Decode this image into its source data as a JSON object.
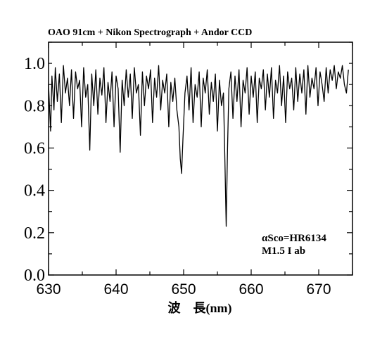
{
  "chart_data": {
    "type": "line",
    "title": "OAO 91cm + Nikon Spectrograph + Andor CCD",
    "xlabel": "波　長(nm)",
    "ylabel": "",
    "xlim": [
      630,
      675
    ],
    "ylim": [
      0.0,
      1.1
    ],
    "x_ticks": [
      630,
      640,
      650,
      660,
      670
    ],
    "x_tick_labels": [
      "630",
      "640",
      "650",
      "660",
      "670"
    ],
    "y_ticks": [
      0.0,
      0.2,
      0.4,
      0.6,
      0.8,
      1.0
    ],
    "y_tick_labels": [
      "0.0",
      "0.2",
      "0.4",
      "0.6",
      "0.8",
      "1.0"
    ],
    "grid": false,
    "annotations": [
      "αSco=HR6134",
      "M1.5 I ab"
    ],
    "series": [
      {
        "x": [
          630.0,
          630.3,
          630.5,
          630.8,
          631.0,
          631.3,
          631.6,
          631.9,
          632.2,
          632.5,
          632.8,
          633.1,
          633.4,
          633.7,
          634.0,
          634.3,
          634.6,
          634.9,
          635.2,
          635.5,
          635.8,
          636.1,
          636.4,
          636.7,
          637.0,
          637.3,
          637.6,
          637.9,
          638.2,
          638.5,
          638.8,
          639.1,
          639.4,
          639.7,
          640.0,
          640.3,
          640.6,
          640.9,
          641.2,
          641.5,
          641.8,
          642.1,
          642.4,
          642.7,
          643.0,
          643.3,
          643.6,
          643.9,
          644.2,
          644.5,
          644.8,
          645.1,
          645.4,
          645.7,
          646.0,
          646.3,
          646.6,
          646.9,
          647.2,
          647.5,
          647.8,
          648.1,
          648.4,
          648.7,
          649.0,
          649.3,
          649.5,
          649.7,
          649.9,
          650.2,
          650.5,
          650.8,
          651.1,
          651.4,
          651.7,
          652.0,
          652.3,
          652.6,
          652.9,
          653.2,
          653.5,
          653.8,
          654.1,
          654.4,
          654.7,
          655.0,
          655.3,
          655.6,
          655.9,
          656.1,
          656.3,
          656.5,
          656.7,
          657.0,
          657.3,
          657.6,
          657.9,
          658.2,
          658.5,
          658.8,
          659.1,
          659.4,
          659.7,
          660.0,
          660.3,
          660.6,
          660.9,
          661.2,
          661.5,
          661.8,
          662.1,
          662.4,
          662.7,
          663.0,
          663.3,
          663.6,
          663.9,
          664.2,
          664.5,
          664.8,
          665.1,
          665.4,
          665.7,
          666.0,
          666.3,
          666.6,
          666.9,
          667.2,
          667.5,
          667.8,
          668.1,
          668.4,
          668.7,
          669.0,
          669.3,
          669.6,
          669.9,
          670.2,
          670.5,
          670.8,
          671.1,
          671.4,
          671.7,
          672.0,
          672.3,
          672.6,
          672.9,
          673.2,
          673.5,
          673.8,
          674.1,
          674.4
        ],
        "y": [
          0.9,
          0.68,
          0.94,
          0.78,
          0.98,
          0.82,
          0.95,
          0.72,
          0.99,
          0.86,
          0.93,
          0.8,
          0.97,
          0.74,
          0.96,
          0.88,
          0.92,
          0.7,
          0.98,
          0.84,
          0.9,
          0.59,
          0.95,
          0.8,
          0.97,
          0.76,
          0.93,
          0.85,
          0.98,
          0.72,
          0.91,
          0.82,
          0.96,
          0.7,
          0.94,
          0.88,
          0.58,
          0.92,
          0.8,
          0.97,
          0.84,
          0.95,
          0.74,
          0.98,
          0.86,
          0.9,
          0.66,
          0.96,
          0.8,
          0.94,
          0.88,
          0.97,
          0.72,
          0.93,
          0.84,
          0.99,
          0.78,
          0.92,
          0.86,
          0.95,
          0.7,
          0.91,
          0.82,
          0.93,
          0.78,
          0.7,
          0.55,
          0.48,
          0.64,
          0.86,
          0.94,
          0.78,
          0.98,
          0.72,
          0.9,
          0.84,
          0.96,
          0.7,
          0.93,
          0.86,
          0.97,
          0.76,
          0.91,
          0.82,
          0.95,
          0.68,
          0.92,
          0.8,
          0.86,
          0.55,
          0.23,
          0.6,
          0.88,
          0.96,
          0.74,
          0.94,
          0.82,
          0.97,
          0.7,
          0.92,
          0.86,
          0.98,
          0.76,
          0.94,
          0.84,
          0.96,
          0.72,
          0.93,
          0.88,
          0.97,
          0.78,
          0.95,
          0.84,
          0.98,
          0.74,
          0.92,
          0.86,
          0.99,
          0.8,
          0.94,
          0.72,
          0.96,
          0.88,
          0.93,
          0.78,
          0.98,
          0.82,
          0.95,
          0.86,
          0.97,
          0.76,
          0.99,
          0.84,
          0.93,
          0.88,
          0.98,
          0.8,
          0.96,
          0.9,
          0.82,
          0.98,
          0.86,
          0.97,
          0.92,
          0.99,
          0.88,
          0.96,
          0.93,
          0.99,
          0.9,
          0.86,
          0.97
        ]
      }
    ]
  }
}
